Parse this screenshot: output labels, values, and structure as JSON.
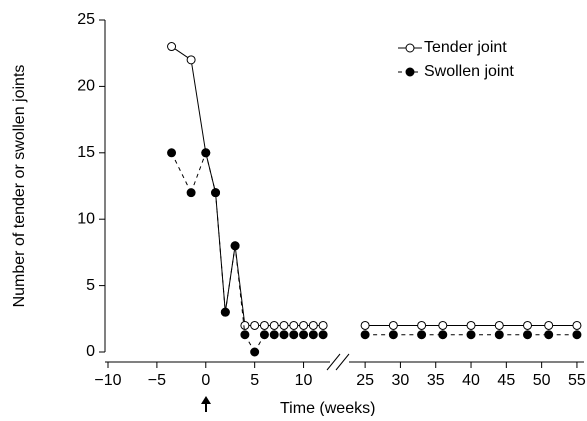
{
  "chart_data": {
    "type": "line",
    "x_label": "Time (weeks)",
    "y_label": "Number of tender or swollen joints",
    "xlim": [
      -10,
      56
    ],
    "xbreak": [
      12.5,
      23
    ],
    "xticks": [
      -10,
      -5,
      0,
      5,
      10,
      25,
      30,
      35,
      40,
      45,
      50,
      55
    ],
    "ylim": [
      0,
      25
    ],
    "yticks": [
      0,
      5,
      10,
      15,
      20,
      25
    ],
    "legend": "top-right",
    "series": [
      {
        "name": "Tender joint",
        "color": "#000000",
        "marker": "open",
        "dashed": false,
        "x": [
          -3.5,
          -1.5,
          0,
          1,
          2,
          3,
          4,
          5,
          6,
          7,
          8,
          9,
          10,
          11,
          12,
          25,
          29,
          33,
          36,
          40,
          44,
          48,
          51,
          55
        ],
        "values": [
          23,
          22,
          15,
          12,
          3,
          8,
          2,
          2,
          2,
          2,
          2,
          2,
          2,
          2,
          2,
          2,
          2,
          2,
          2,
          2,
          2,
          2,
          2,
          2
        ]
      },
      {
        "name": "Swollen joint",
        "color": "#000000",
        "marker": "filled",
        "dashed": true,
        "x": [
          -3.5,
          -1.5,
          0,
          1,
          2,
          3,
          4,
          5,
          6,
          7,
          8,
          9,
          10,
          11,
          12,
          25,
          29,
          33,
          36,
          40,
          44,
          48,
          51,
          55
        ],
        "values": [
          15,
          12,
          15,
          12,
          3,
          8,
          1.3,
          0,
          1.3,
          1.3,
          1.3,
          1.3,
          1.3,
          1.3,
          1.3,
          1.3,
          1.3,
          1.3,
          1.3,
          1.3,
          1.3,
          1.3,
          1.3,
          1.3
        ]
      }
    ]
  }
}
